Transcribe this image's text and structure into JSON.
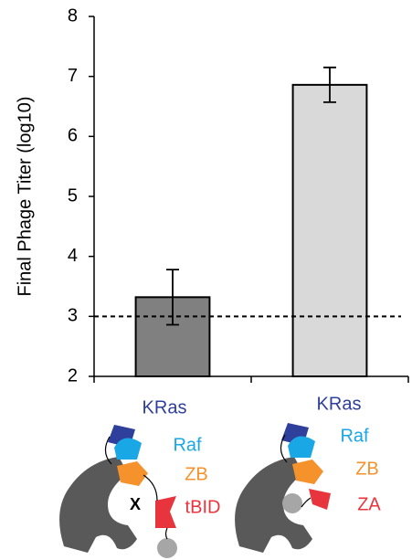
{
  "chart_data": {
    "type": "bar",
    "y_label": "Final Phage Titer (log10)",
    "categories": [
      null,
      null
    ],
    "values": [
      3.32,
      6.86
    ],
    "errors": [
      0.46,
      0.29
    ],
    "colors": [
      "#808080",
      "#d9d9d9"
    ],
    "ylim": [
      2,
      8
    ],
    "yticks": [
      2,
      3,
      4,
      5,
      6,
      7,
      8
    ],
    "reference_line": 3,
    "constructs": [
      {
        "labels": [
          "KRas",
          "Raf",
          "ZB",
          "X",
          "tBID"
        ]
      },
      {
        "labels": [
          "KRas",
          "Raf",
          "ZB",
          "ZA"
        ]
      }
    ]
  }
}
